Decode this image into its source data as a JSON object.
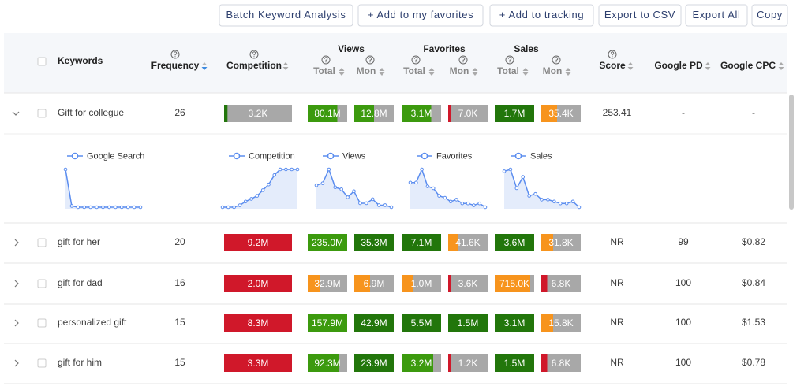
{
  "toolbar": {
    "buttons": [
      "Batch Keyword Analysis",
      "+ Add to my favorites",
      "+ Add to tracking",
      "Export to CSV",
      "Export All",
      "Copy"
    ]
  },
  "table": {
    "headers": {
      "keywords": "Keywords",
      "frequency": "Frequency",
      "competition": "Competition",
      "views": "Views",
      "favorites": "Favorites",
      "sales": "Sales",
      "total": "Total",
      "mon": "Mon",
      "score": "Score",
      "google_pd": "Google PD",
      "google_cpc": "Google CPC"
    },
    "rows": [
      {
        "keyword": "Gift for collegue",
        "frequency": 26,
        "expanded": true,
        "cells": [
          {
            "text": "3.2K",
            "fill": 0.05,
            "color": "#22760b"
          },
          {
            "text": "80.1M",
            "fill": 0.75,
            "color": "#3c9a0e"
          },
          {
            "text": "12.8M",
            "fill": 0.5,
            "color": "#3c9a0e"
          },
          {
            "text": "3.1M",
            "fill": 0.75,
            "color": "#3c9a0e"
          },
          {
            "text": "7.0K",
            "fill": 0.05,
            "color": "#d0182a"
          },
          {
            "text": "1.7M",
            "fill": 1,
            "color": "#22760b"
          },
          {
            "text": "35.4K",
            "fill": 0.4,
            "color": "#f7941d"
          }
        ],
        "score": "253.41",
        "google_pd": "-",
        "google_cpc": "-"
      },
      {
        "keyword": "gift for her",
        "frequency": 20,
        "expanded": false,
        "cells": [
          {
            "text": "9.2M",
            "fill": 1,
            "color": "#d0182a"
          },
          {
            "text": "235.0M",
            "fill": 1,
            "color": "#3c9a0e"
          },
          {
            "text": "35.3M",
            "fill": 1,
            "color": "#22760b"
          },
          {
            "text": "7.1M",
            "fill": 1,
            "color": "#22760b"
          },
          {
            "text": "41.6K",
            "fill": 0.25,
            "color": "#f7941d"
          },
          {
            "text": "3.6M",
            "fill": 1,
            "color": "#22760b"
          },
          {
            "text": "31.8K",
            "fill": 0.3,
            "color": "#f7941d"
          }
        ],
        "score": "NR",
        "google_pd": "99",
        "google_cpc": "$0.82"
      },
      {
        "keyword": "gift for dad",
        "frequency": 16,
        "expanded": false,
        "cells": [
          {
            "text": "2.0M",
            "fill": 1,
            "color": "#d0182a"
          },
          {
            "text": "32.9M",
            "fill": 0.3,
            "color": "#f7941d"
          },
          {
            "text": "6.9M",
            "fill": 0.4,
            "color": "#f7941d"
          },
          {
            "text": "1.0M",
            "fill": 0.3,
            "color": "#f7941d"
          },
          {
            "text": "3.6K",
            "fill": 0.03,
            "color": "#d0182a"
          },
          {
            "text": "715.0K",
            "fill": 0.9,
            "color": "#f7941d"
          },
          {
            "text": "6.8K",
            "fill": 0.15,
            "color": "#d0182a"
          }
        ],
        "score": "NR",
        "google_pd": "100",
        "google_cpc": "$0.84"
      },
      {
        "keyword": "personalized gift",
        "frequency": 15,
        "expanded": false,
        "cells": [
          {
            "text": "8.3M",
            "fill": 1,
            "color": "#d0182a"
          },
          {
            "text": "157.9M",
            "fill": 1,
            "color": "#3c9a0e"
          },
          {
            "text": "42.9M",
            "fill": 1,
            "color": "#22760b"
          },
          {
            "text": "5.5M",
            "fill": 1,
            "color": "#22760b"
          },
          {
            "text": "1.5M",
            "fill": 1,
            "color": "#22760b"
          },
          {
            "text": "3.1M",
            "fill": 1,
            "color": "#22760b"
          },
          {
            "text": "15.8K",
            "fill": 0.3,
            "color": "#f7941d"
          }
        ],
        "score": "NR",
        "google_pd": "100",
        "google_cpc": "$1.53"
      },
      {
        "keyword": "gift for him",
        "frequency": 15,
        "expanded": false,
        "cells": [
          {
            "text": "3.3M",
            "fill": 1,
            "color": "#d0182a"
          },
          {
            "text": "92.3M",
            "fill": 0.8,
            "color": "#3c9a0e"
          },
          {
            "text": "23.9M",
            "fill": 1,
            "color": "#22760b"
          },
          {
            "text": "3.2M",
            "fill": 0.8,
            "color": "#3c9a0e"
          },
          {
            "text": "1.2K",
            "fill": 0.03,
            "color": "#d0182a"
          },
          {
            "text": "1.5M",
            "fill": 1,
            "color": "#22760b"
          },
          {
            "text": "6.8K",
            "fill": 0.15,
            "color": "#d0182a"
          }
        ],
        "score": "NR",
        "google_pd": "100",
        "google_cpc": "$0.78"
      }
    ]
  },
  "trends": [
    {
      "name": "Google Search",
      "values": [
        95,
        5,
        2,
        2,
        2,
        2,
        2,
        2,
        2,
        2,
        2,
        2,
        2
      ]
    },
    {
      "name": "Competition",
      "values": [
        0,
        0,
        0,
        5,
        15,
        22,
        30,
        45,
        60,
        85,
        100,
        100,
        100,
        100
      ]
    },
    {
      "name": "Views",
      "values": [
        60,
        65,
        100,
        55,
        50,
        30,
        45,
        15,
        15,
        25,
        10,
        10,
        5
      ]
    },
    {
      "name": "Favorites",
      "values": [
        65,
        65,
        100,
        55,
        50,
        30,
        25,
        15,
        20,
        10,
        10,
        5,
        10,
        0
      ]
    },
    {
      "name": "Sales",
      "values": [
        95,
        100,
        50,
        80,
        30,
        35,
        20,
        20,
        15,
        10,
        10,
        15,
        0
      ]
    }
  ]
}
